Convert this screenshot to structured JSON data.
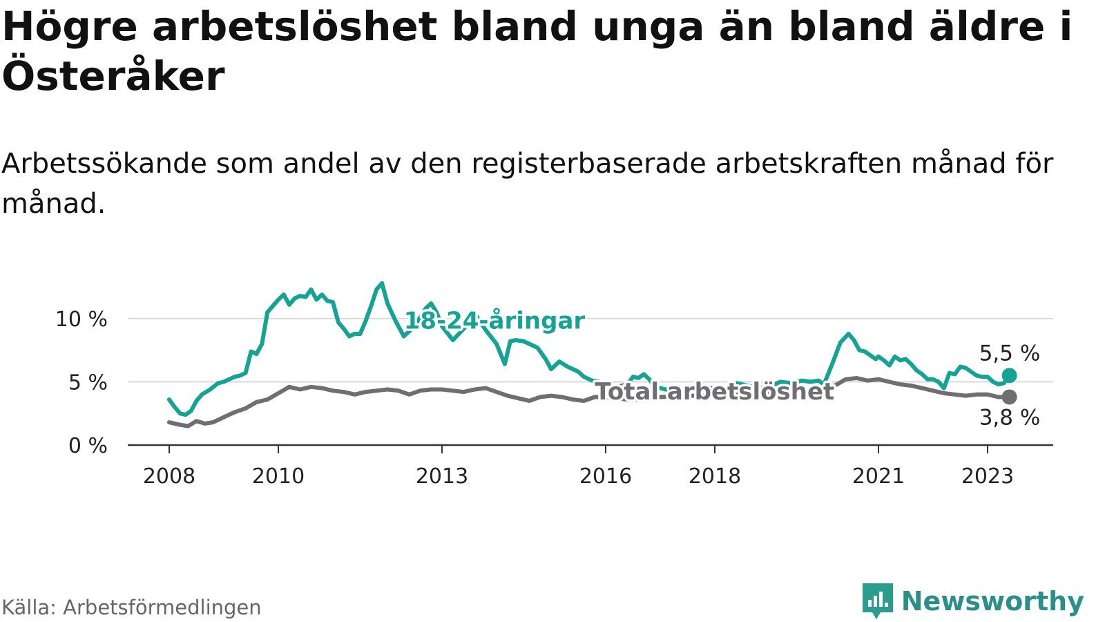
{
  "title": "Högre arbetslöshet bland unga än bland äldre i Österåker",
  "subtitle": "Arbetssökande som andel av den registerbaserade arbetskraften månad för månad.",
  "source": "Källa: Arbetsförmedlingen",
  "brand": {
    "name": "Newsworthy",
    "icon": "newsworthy-logo-icon",
    "color": "#2a9d8f"
  },
  "chart_data": {
    "type": "line",
    "title": "Högre arbetslöshet bland unga än bland äldre i Österåker",
    "subtitle": "Arbetssökande som andel av den registerbaserade arbetskraften månad för månad.",
    "xlabel": "",
    "ylabel": "",
    "xlim": [
      2008,
      2024.2
    ],
    "ylim": [
      0,
      13
    ],
    "x_ticks": [
      2008,
      2010,
      2013,
      2016,
      2018,
      2021,
      2023
    ],
    "x_tick_labels": [
      "2008",
      "2010",
      "2013",
      "2016",
      "2018",
      "2021",
      "2023"
    ],
    "y_ticks": [
      0,
      5,
      10
    ],
    "y_tick_labels": [
      "0 %",
      "5 %",
      "10 %"
    ],
    "grid": true,
    "legend": "inline",
    "series": [
      {
        "name": "18-24-åringar",
        "color": "#14a394",
        "end_label": "5,5 %",
        "x": [
          2008.0,
          2008.1,
          2008.2,
          2008.3,
          2008.4,
          2008.5,
          2008.6,
          2008.75,
          2008.9,
          2009.0,
          2009.1,
          2009.2,
          2009.3,
          2009.4,
          2009.5,
          2009.6,
          2009.7,
          2009.8,
          2009.9,
          2010.0,
          2010.1,
          2010.2,
          2010.3,
          2010.4,
          2010.5,
          2010.6,
          2010.7,
          2010.8,
          2010.9,
          2011.0,
          2011.1,
          2011.2,
          2011.3,
          2011.4,
          2011.5,
          2011.6,
          2011.7,
          2011.8,
          2011.9,
          2012.0,
          2012.15,
          2012.3,
          2012.5,
          2012.7,
          2012.8,
          2012.9,
          2013.0,
          2013.2,
          2013.4,
          2013.6,
          2013.8,
          2014.0,
          2014.15,
          2014.25,
          2014.35,
          2014.5,
          2014.6,
          2014.75,
          2014.9,
          2015.0,
          2015.15,
          2015.3,
          2015.5,
          2015.6,
          2015.75,
          2015.9,
          2016.0,
          2016.2,
          2016.4,
          2016.5,
          2016.6,
          2016.7,
          2016.8,
          2016.9,
          2017.0,
          2017.2,
          2017.4,
          2017.6,
          2017.8,
          2018.0,
          2018.2,
          2018.4,
          2018.6,
          2018.8,
          2019.0,
          2019.2,
          2019.4,
          2019.6,
          2019.75,
          2019.9,
          2020.0,
          2020.15,
          2020.3,
          2020.45,
          2020.55,
          2020.65,
          2020.75,
          2020.85,
          2020.95,
          2021.0,
          2021.1,
          2021.2,
          2021.3,
          2021.4,
          2021.5,
          2021.6,
          2021.7,
          2021.8,
          2021.9,
          2022.0,
          2022.1,
          2022.2,
          2022.3,
          2022.4,
          2022.5,
          2022.6,
          2022.7,
          2022.8,
          2022.9,
          2023.0,
          2023.1,
          2023.2,
          2023.3,
          2023.4
        ],
        "y": [
          3.6,
          3.0,
          2.5,
          2.4,
          2.7,
          3.5,
          4.0,
          4.4,
          4.9,
          5.0,
          5.2,
          5.4,
          5.5,
          5.7,
          7.4,
          7.2,
          8.0,
          10.5,
          11.0,
          11.5,
          11.9,
          11.1,
          11.6,
          11.8,
          11.7,
          12.3,
          11.5,
          11.9,
          11.4,
          11.3,
          9.7,
          9.2,
          8.6,
          8.8,
          8.8,
          9.8,
          11.0,
          12.3,
          12.8,
          11.2,
          9.8,
          8.6,
          9.4,
          10.8,
          11.2,
          10.5,
          9.4,
          8.3,
          9.2,
          10.4,
          9.1,
          8.0,
          6.4,
          8.2,
          8.3,
          8.2,
          8.0,
          7.7,
          6.8,
          6.0,
          6.6,
          6.2,
          5.8,
          5.4,
          5.1,
          5.0,
          4.6,
          4.6,
          4.8,
          5.4,
          5.3,
          5.6,
          5.2,
          4.6,
          4.5,
          4.3,
          4.2,
          4.6,
          4.7,
          4.4,
          4.5,
          4.9,
          4.7,
          4.5,
          4.6,
          5.0,
          4.9,
          5.1,
          5.0,
          5.1,
          4.8,
          6.4,
          8.1,
          8.8,
          8.3,
          7.5,
          7.4,
          7.1,
          6.8,
          7.0,
          6.7,
          6.3,
          7.0,
          6.7,
          6.8,
          6.4,
          5.9,
          5.6,
          5.2,
          5.2,
          5.0,
          4.5,
          5.7,
          5.6,
          6.2,
          6.1,
          5.8,
          5.5,
          5.4,
          5.4,
          5.0,
          4.8,
          4.9,
          5.5
        ],
        "label_position": [
          2012.3,
          9.2
        ]
      },
      {
        "name": "Total arbetslöshet",
        "color": "#6e6e73",
        "end_label": "3,8 %",
        "x": [
          2008.0,
          2008.2,
          2008.35,
          2008.5,
          2008.65,
          2008.8,
          2009.0,
          2009.2,
          2009.4,
          2009.6,
          2009.8,
          2010.0,
          2010.2,
          2010.4,
          2010.6,
          2010.8,
          2011.0,
          2011.2,
          2011.4,
          2011.6,
          2011.8,
          2012.0,
          2012.2,
          2012.4,
          2012.6,
          2012.8,
          2013.0,
          2013.2,
          2013.4,
          2013.6,
          2013.8,
          2014.0,
          2014.2,
          2014.4,
          2014.6,
          2014.8,
          2015.0,
          2015.2,
          2015.4,
          2015.6,
          2015.8,
          2016.0,
          2016.2,
          2016.4,
          2016.6,
          2016.8,
          2017.0,
          2017.5,
          2018.0,
          2018.5,
          2019.0,
          2019.4,
          2019.8,
          2020.0,
          2020.2,
          2020.4,
          2020.6,
          2020.8,
          2021.0,
          2021.2,
          2021.4,
          2021.6,
          2021.8,
          2022.0,
          2022.2,
          2022.4,
          2022.6,
          2022.8,
          2023.0,
          2023.2,
          2023.4
        ],
        "y": [
          1.8,
          1.6,
          1.5,
          1.9,
          1.7,
          1.8,
          2.2,
          2.6,
          2.9,
          3.4,
          3.6,
          4.1,
          4.6,
          4.4,
          4.6,
          4.5,
          4.3,
          4.2,
          4.0,
          4.2,
          4.3,
          4.4,
          4.3,
          4.0,
          4.3,
          4.4,
          4.4,
          4.3,
          4.2,
          4.4,
          4.5,
          4.2,
          3.9,
          3.7,
          3.5,
          3.8,
          3.9,
          3.8,
          3.6,
          3.5,
          3.8,
          3.8,
          3.7,
          3.6,
          3.6,
          3.8,
          3.8,
          3.9,
          3.9,
          4.0,
          4.2,
          4.3,
          4.3,
          4.5,
          4.7,
          5.2,
          5.3,
          5.1,
          5.2,
          5.0,
          4.8,
          4.7,
          4.5,
          4.3,
          4.1,
          4.0,
          3.9,
          4.0,
          4.0,
          3.8,
          3.8
        ],
        "label_position": [
          2015.8,
          3.6
        ]
      }
    ]
  }
}
